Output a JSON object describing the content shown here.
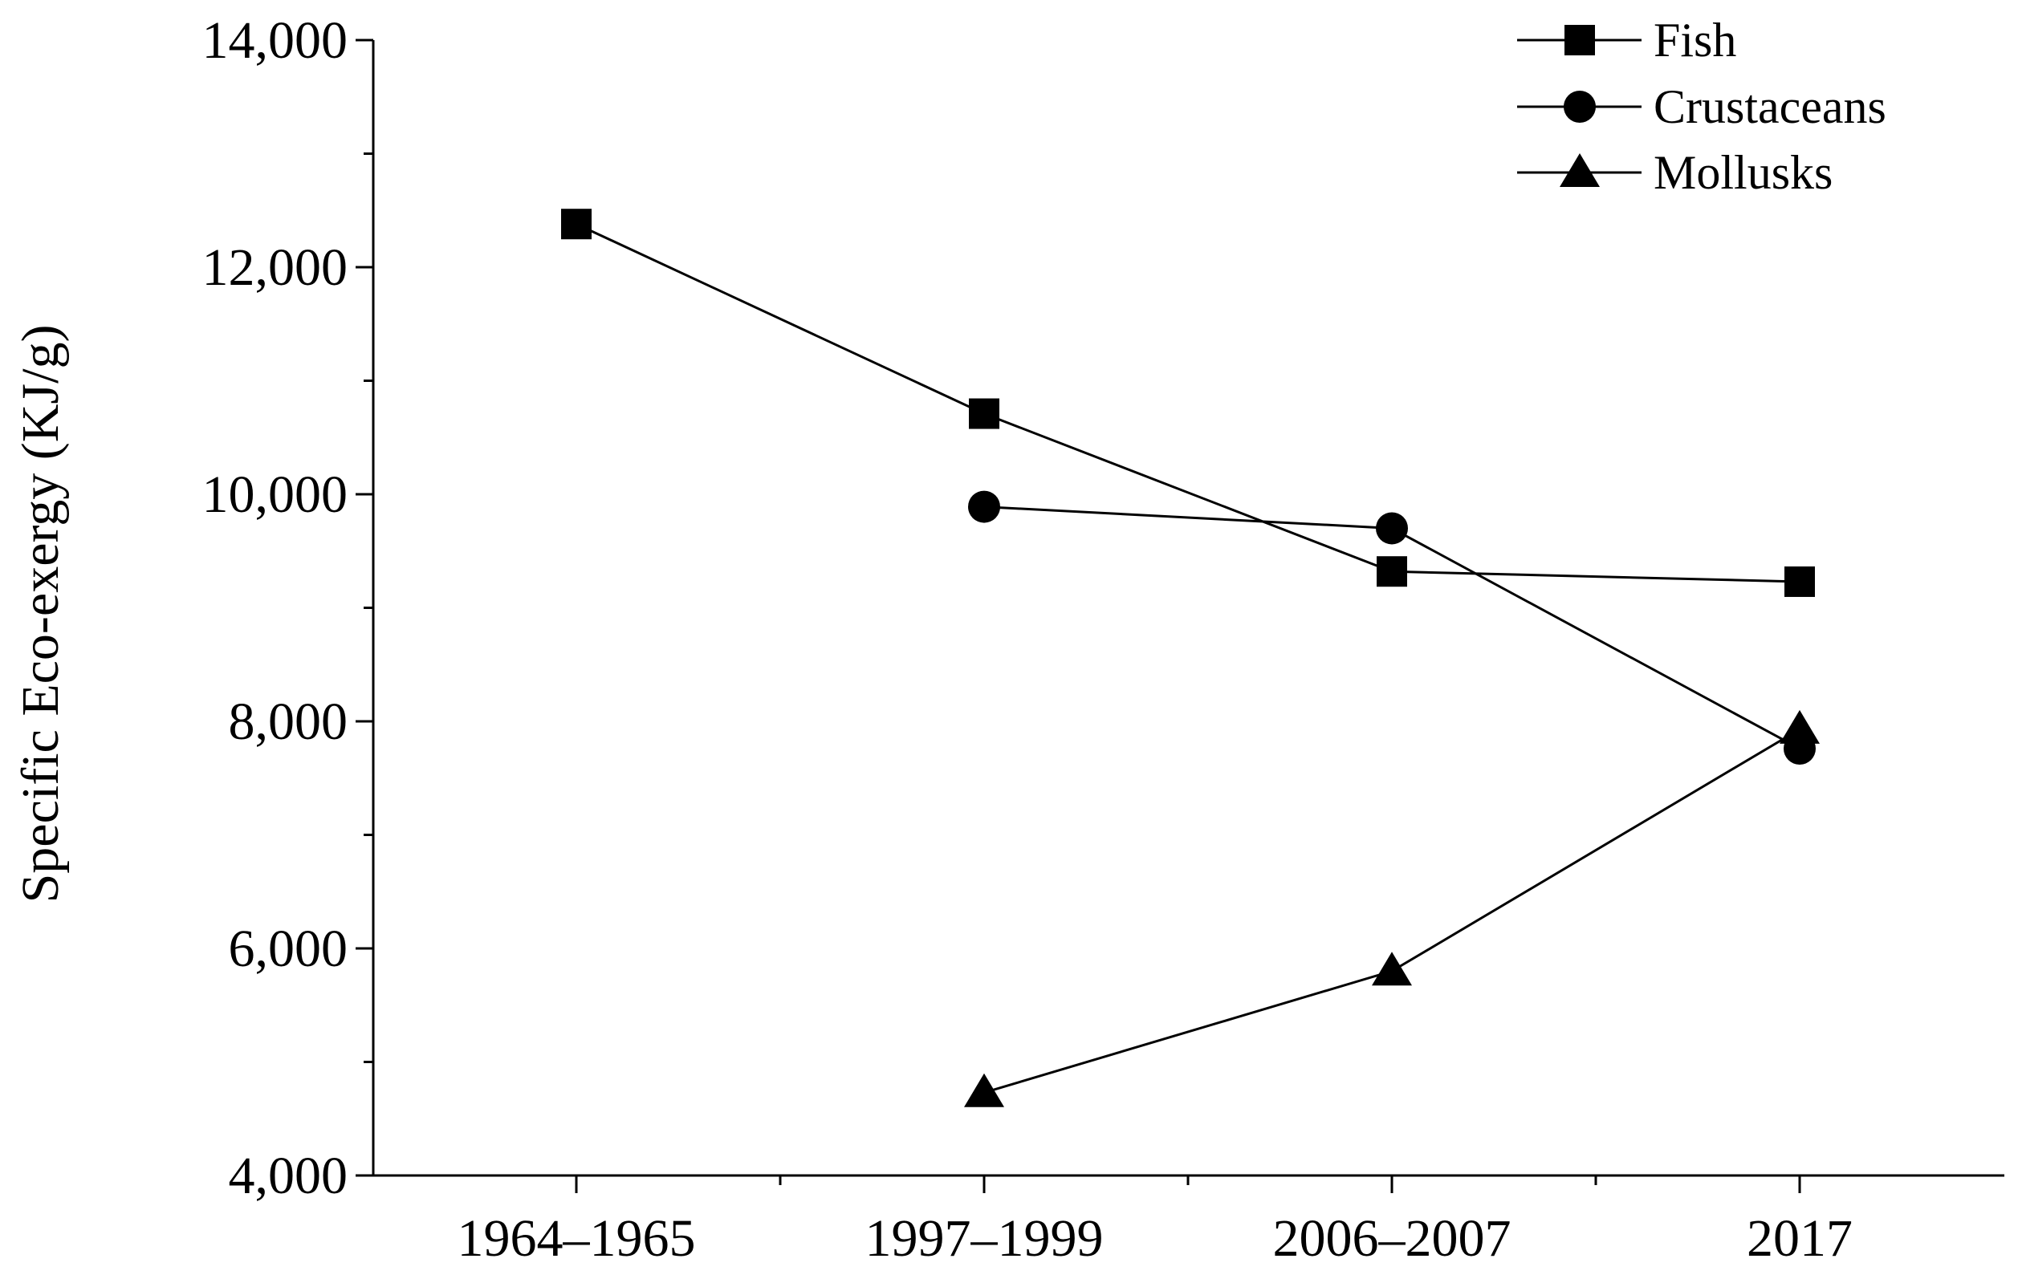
{
  "chart_data": {
    "type": "line",
    "title": "",
    "xlabel": "",
    "ylabel": "Specific Eco-exergy (KJ/g)",
    "categories": [
      "1964–1965",
      "1997–1999",
      "2006–2007",
      "2017"
    ],
    "ylim": [
      4000,
      14000
    ],
    "yticks": [
      4000,
      6000,
      8000,
      10000,
      12000,
      14000
    ],
    "ytick_labels": [
      "4,000",
      "6,000",
      "8,000",
      "10,000",
      "12,000",
      "14,000"
    ],
    "grid": false,
    "legend_position": "top-right",
    "series": [
      {
        "name": "Fish",
        "marker": "square",
        "values": [
          12380,
          10710,
          9320,
          9230
        ]
      },
      {
        "name": "Crustaceans",
        "marker": "circle",
        "values": [
          null,
          9890,
          9700,
          7760
        ]
      },
      {
        "name": "Mollusks",
        "marker": "triangle",
        "values": [
          null,
          4730,
          5800,
          7930
        ]
      }
    ],
    "colors": {
      "line": "#000000",
      "marker": "#000000"
    }
  }
}
